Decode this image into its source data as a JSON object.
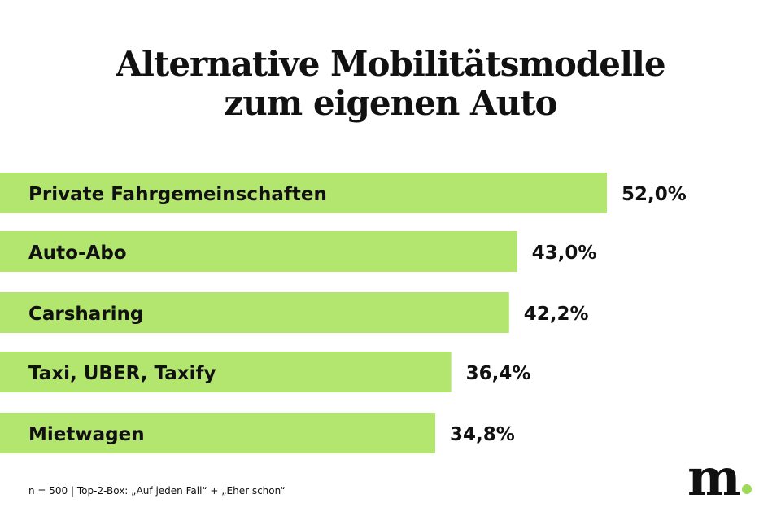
{
  "chart_data": {
    "type": "bar",
    "orientation": "horizontal",
    "title": "Alternative Mobilitätsmodelle zum eigenen Auto",
    "title_lines": [
      "Alternative Mobilitätsmodelle",
      "zum eigenen Auto"
    ],
    "categories": [
      "Private Fahrgemeinschaften",
      "Auto-Abo",
      "Carsharing",
      "Taxi, UBER, Taxify",
      "Mietwagen"
    ],
    "values": [
      52.0,
      43.0,
      42.2,
      36.4,
      34.8
    ],
    "value_labels": [
      "52,0%",
      "43,0%",
      "42,2%",
      "36,4%",
      "34,8%"
    ],
    "unit": "%",
    "grid": false,
    "bar_color": "#b3e66e"
  },
  "footnote": "n = 500 | Top-2-Box: „Auf jeden Fall“ + „Eher schon“",
  "logo": {
    "text": "m",
    "dot_color": "#9fd95a"
  }
}
